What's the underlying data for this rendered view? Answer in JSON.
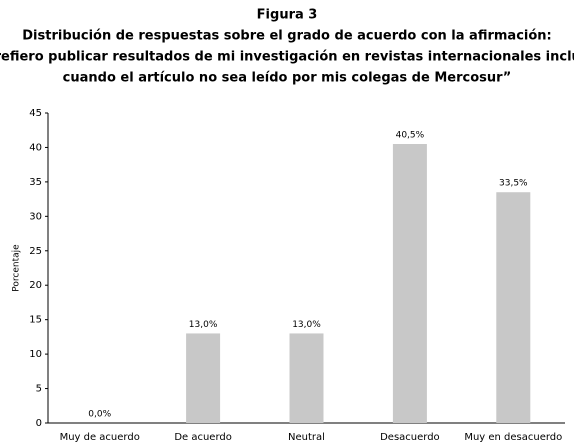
{
  "chart_data": {
    "type": "bar",
    "title": "Figura 3",
    "subtitle": [
      "Distribución de respuestas sobre el grado de acuerdo con la afirmación:",
      "“Prefiero publicar resultados de mi investigación en revistas internacionales incluso",
      "cuando el artículo no sea leído por mis colegas de Mercosur”"
    ],
    "y_label": "Porcentaje",
    "categories": [
      "Muy de acuerdo",
      "De acuerdo",
      "Neutral",
      "Desacuerdo",
      "Muy en desacuerdo"
    ],
    "values": [
      0,
      13,
      13,
      40.5,
      33.5
    ],
    "value_labels": [
      "0,0%",
      "13,0%",
      "13,0%",
      "40,5%",
      "33,5%"
    ],
    "color": "#c8c8c8",
    "ylim": [
      0,
      45
    ],
    "yticks": [
      0,
      5,
      10,
      15,
      20,
      25,
      30,
      35,
      40,
      45
    ],
    "grid": false
  }
}
